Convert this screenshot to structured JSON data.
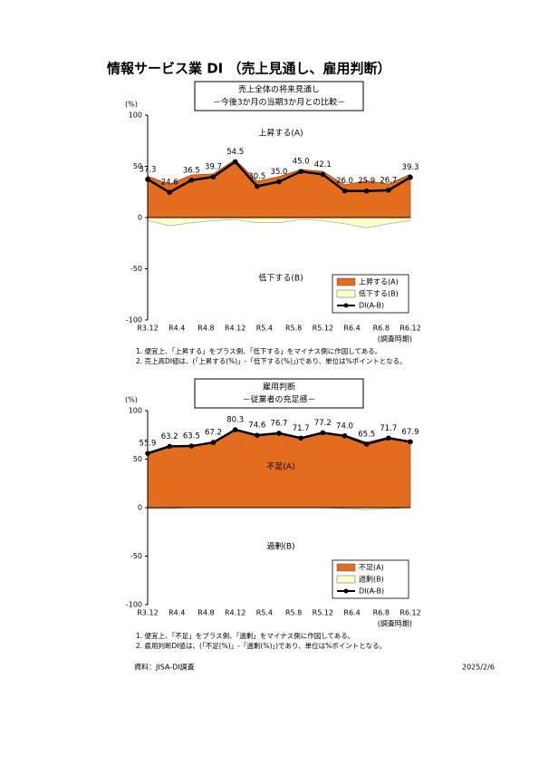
{
  "title": "情報サービス業 DI （売上見通し、雇用判断）",
  "chart_data": [
    {
      "type": "area",
      "title_lines": [
        "売上全体の将来見通し",
        "－今後3か月の当期3か月との比較－"
      ],
      "y_unit": "(%)",
      "xlabel": "(調査時期)",
      "xlabels": [
        "R3.12",
        "R4.4",
        "R4.8",
        "R4.12",
        "R5.4",
        "R5.8",
        "R5.12",
        "R6.4",
        "R6.8",
        "R6.12"
      ],
      "ylim": [
        -100,
        100
      ],
      "yticks": [
        100,
        50,
        0,
        -50,
        -100
      ],
      "annotations": [
        "上昇する(A)",
        "低下する(B)"
      ],
      "series": [
        {
          "name": "上昇する(A)",
          "color": "#e46c1e",
          "values": [
            40.3,
            32.6,
            41.5,
            42.7,
            56.5,
            35.5,
            40,
            47,
            45.1,
            32,
            35.9,
            32.7,
            42.3
          ]
        },
        {
          "name": "低下する(B)",
          "color": "#ffffcc",
          "values": [
            -3,
            -8,
            -5,
            -3,
            -2,
            -5,
            -5,
            -2,
            -3,
            -6,
            -10,
            -6,
            -3
          ]
        },
        {
          "name": "DI(A-B)",
          "color": "#000000",
          "values": [
            37.3,
            24.6,
            36.5,
            39.7,
            54.5,
            30.5,
            35,
            45,
            42.1,
            26,
            25.9,
            26.7,
            39.3
          ],
          "value_labels": [
            "37.3",
            "24.6",
            "36.5",
            "39.7",
            "54.5",
            "30.5",
            "35.0",
            "45.0",
            "42.1",
            "26.0",
            "25.9",
            "26.7",
            "39.3"
          ]
        }
      ],
      "notes": [
        "1. 便宜上、「上昇する」をプラス側、「低下する」をマイナス側に作図してある。",
        "2. 売上高DI値は、(「上昇する(%)」-「低下する(%)」)であり、単位は%ポイントとなる。"
      ]
    },
    {
      "type": "area",
      "title_lines": [
        "雇用判断",
        "－従業者の充足感－"
      ],
      "y_unit": "(%)",
      "xlabel": "(調査時期)",
      "xlabels": [
        "R3.12",
        "R4.4",
        "R4.8",
        "R4.12",
        "R5.4",
        "R5.8",
        "R5.12",
        "R6.4",
        "R6.8",
        "R6.12"
      ],
      "ylim": [
        -100,
        100
      ],
      "yticks": [
        100,
        50,
        0,
        -50,
        -100
      ],
      "annotations": [
        "不足(A)",
        "過剰(B)"
      ],
      "series": [
        {
          "name": "不足(A)",
          "color": "#e46c1e",
          "values": [
            56.9,
            64.2,
            63.5,
            67.2,
            80.3,
            74.6,
            76.7,
            71.7,
            77.2,
            75,
            67.5,
            72.7,
            67.9
          ]
        },
        {
          "name": "過剰(B)",
          "color": "#ffffcc",
          "values": [
            -1,
            -1,
            0,
            0,
            0,
            0,
            0,
            0,
            0,
            -1,
            -2,
            -1,
            0
          ]
        },
        {
          "name": "DI(A-B)",
          "color": "#000000",
          "values": [
            55.9,
            63.2,
            63.5,
            67.2,
            80.3,
            74.6,
            76.7,
            71.7,
            77.2,
            74,
            65.5,
            71.7,
            67.9
          ],
          "value_labels": [
            "55.9",
            "63.2",
            "63.5",
            "67.2",
            "80.3",
            "74.6",
            "76.7",
            "71.7",
            "77.2",
            "74.0",
            "65.5",
            "71.7",
            "67.9"
          ]
        }
      ],
      "notes": [
        "1. 便宜上、「不足」をプラス側、「過剰」をマイナス側に作図してある。",
        "2. 雇用判断DI値は、(「不足(%)」-「過剰(%)」)であり、単位は%ポイントとなる。"
      ]
    }
  ],
  "source": "資料：JISA-DI調査",
  "date": "2025/2/6"
}
